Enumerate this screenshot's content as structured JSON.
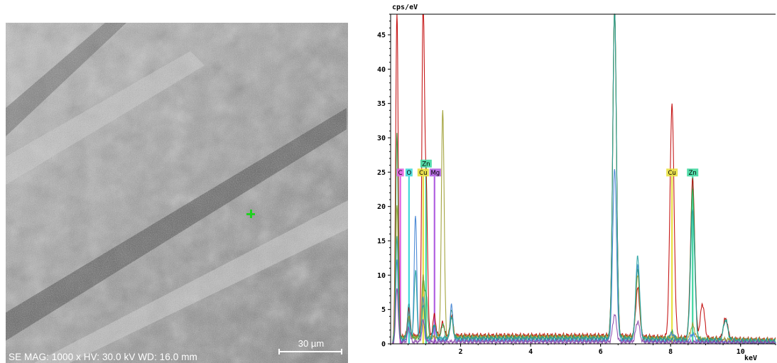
{
  "sem": {
    "info": "SE  MAG: 1000 x  HV: 30.0 kV  WD: 16.0 mm",
    "scale_label": "30 µm"
  },
  "colors": {
    "trace_red": "#c00000",
    "trace_green": "#2ea043",
    "trace_blue": "#3d7fd1",
    "trace_olive": "#9a9a2a",
    "trace_teal": "#20a0a0",
    "trace_purple": "#8844aa"
  },
  "chart_data": {
    "type": "line",
    "ylabel": "cps/eV",
    "xlabel": "keV",
    "xlim": [
      0,
      11
    ],
    "ylim": [
      0,
      48
    ],
    "x_ticks": [
      2,
      4,
      6,
      8,
      10
    ],
    "y_ticks": [
      0,
      5,
      10,
      15,
      20,
      25,
      30,
      35,
      40,
      45
    ],
    "grid": false,
    "element_markers": [
      {
        "name": "C",
        "energy": 0.277,
        "color": "#e060e0",
        "height": 25
      },
      {
        "name": "O",
        "energy": 0.525,
        "color": "#40d8d8",
        "height": 25
      },
      {
        "name": "Zn",
        "energy": 1.012,
        "color": "#40d8a0",
        "height": 26.3
      },
      {
        "name": "Cu",
        "energy": 0.93,
        "color": "#e8e040",
        "height": 25
      },
      {
        "name": "Mg",
        "energy": 1.254,
        "color": "#b060e0",
        "height": 25
      },
      {
        "name": "Cu",
        "energy": 8.04,
        "color": "#e8e040",
        "height": 25
      },
      {
        "name": "Zn",
        "energy": 8.63,
        "color": "#40d8a0",
        "height": 25
      }
    ],
    "series": [
      {
        "color": "#c00000",
        "peaks": [
          [
            0.18,
            48
          ],
          [
            0.52,
            4
          ],
          [
            0.93,
            48
          ],
          [
            1.02,
            20
          ],
          [
            1.25,
            3
          ],
          [
            1.49,
            2
          ],
          [
            1.74,
            3
          ],
          [
            6.4,
            48
          ],
          [
            7.06,
            7
          ],
          [
            8.04,
            34
          ],
          [
            8.63,
            23
          ],
          [
            8.91,
            5
          ],
          [
            9.57,
            3
          ]
        ],
        "background": 1.2
      },
      {
        "color": "#2ea043",
        "peaks": [
          [
            0.18,
            30
          ],
          [
            0.52,
            3
          ],
          [
            0.93,
            8
          ],
          [
            1.02,
            6
          ],
          [
            1.25,
            2
          ],
          [
            1.49,
            2
          ],
          [
            1.74,
            4
          ],
          [
            6.4,
            48
          ],
          [
            7.06,
            10
          ],
          [
            8.04,
            1
          ],
          [
            8.63,
            22
          ],
          [
            9.57,
            3
          ]
        ],
        "background": 0.9
      },
      {
        "color": "#3d7fd1",
        "peaks": [
          [
            0.18,
            12
          ],
          [
            0.52,
            3
          ],
          [
            0.71,
            18
          ],
          [
            0.93,
            6
          ],
          [
            1.25,
            2
          ],
          [
            1.74,
            5
          ],
          [
            6.4,
            25
          ],
          [
            7.06,
            11
          ],
          [
            8.04,
            1
          ],
          [
            8.63,
            1
          ]
        ],
        "background": 0.6
      },
      {
        "color": "#9a9a2a",
        "peaks": [
          [
            0.18,
            20
          ],
          [
            0.52,
            3
          ],
          [
            0.93,
            9
          ],
          [
            1.49,
            33
          ],
          [
            1.74,
            3
          ],
          [
            6.4,
            48
          ],
          [
            7.06,
            9
          ],
          [
            8.63,
            2
          ]
        ],
        "background": 1.0
      },
      {
        "color": "#20a0a0",
        "peaks": [
          [
            0.18,
            15
          ],
          [
            0.52,
            5
          ],
          [
            0.71,
            10
          ],
          [
            0.93,
            5
          ],
          [
            1.25,
            2
          ],
          [
            1.74,
            3
          ],
          [
            6.4,
            48
          ],
          [
            7.06,
            12
          ],
          [
            8.63,
            19
          ],
          [
            9.57,
            3
          ]
        ],
        "background": 0.8
      },
      {
        "color": "#8844aa",
        "peaks": [
          [
            0.18,
            8
          ],
          [
            0.52,
            2
          ],
          [
            0.93,
            3
          ],
          [
            6.4,
            4
          ],
          [
            7.06,
            3
          ]
        ],
        "background": 0.3
      }
    ]
  }
}
